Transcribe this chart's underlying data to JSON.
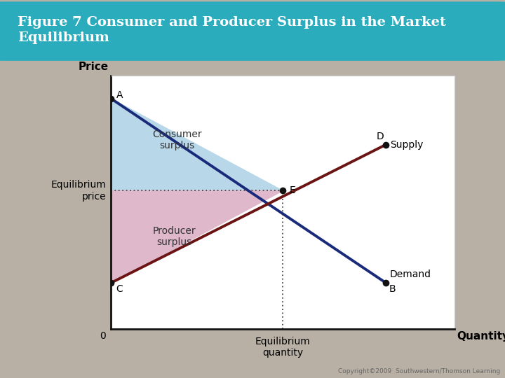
{
  "title": "Figure 7 Consumer and Producer Surplus in the Market\nEquilibrium",
  "title_bg_color": "#2aacbc",
  "title_text_color": "#ffffff",
  "bg_color": "#b8b0a5",
  "chart_bg_color": "#ffffff",
  "chart_border_color": "#dddddd",
  "xlabel": "Quantity",
  "ylabel": "Price",
  "equilibrium_label": "Equilibrium\nprice",
  "eq_quantity_label": "Equilibrium\nquantity",
  "consumer_surplus_label": "Consumer\nsurplus",
  "producer_surplus_label": "Producer\nsurplus",
  "demand_label": "Demand",
  "supply_label": "Supply",
  "copyright": "Copyright©2009  Southwestern/Thomson Learning",
  "A": [
    0,
    10
  ],
  "B": [
    8,
    2
  ],
  "C": [
    0,
    2
  ],
  "D": [
    8,
    8
  ],
  "E": [
    5,
    6
  ],
  "demand_color": "#1a2a7a",
  "supply_color": "#6b1414",
  "consumer_surplus_color": "#b8d8ea",
  "producer_surplus_color": "#e0b8cc",
  "dotted_line_color": "#444444",
  "axis_color": "#111111",
  "label_fontsize": 10,
  "point_size": 7,
  "xlim": [
    0,
    10
  ],
  "ylim": [
    0,
    11
  ]
}
